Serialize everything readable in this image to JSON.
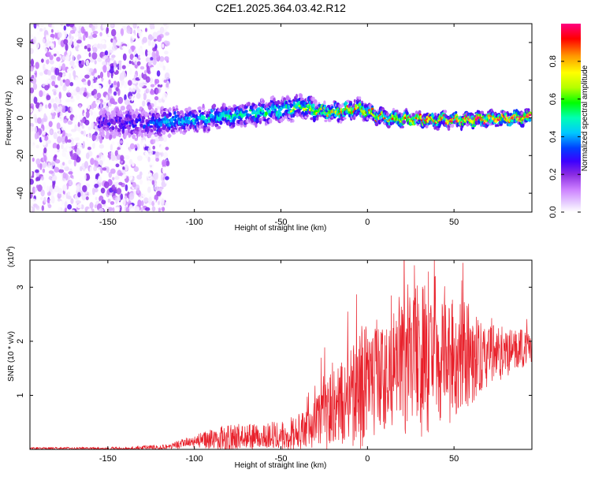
{
  "title": "C2E1.2025.364.03.42.R12",
  "colors": {
    "trace": "#e8202a",
    "axis": "#000000",
    "spectrogram_low": "#8a2be2",
    "spectrogram_high": "#ff0000"
  },
  "chart_data": [
    {
      "type": "heatmap",
      "name": "spectrogram",
      "title": "C2E1.2025.364.03.42.R12",
      "xlabel": "Height of straight line (km)",
      "ylabel": "Frequency (Hz)",
      "xlim": [
        -195,
        95
      ],
      "ylim": [
        -50,
        50
      ],
      "xticks": [
        -150,
        -100,
        -50,
        0,
        50
      ],
      "yticks": [
        -40,
        -20,
        0,
        20,
        40
      ],
      "colorbar": {
        "label": "Normalized spectral amplitude",
        "range": [
          0,
          1
        ],
        "ticks": [
          0.0,
          0.2,
          0.4,
          0.6,
          0.8
        ],
        "tick_labels": [
          "0.0",
          "0.2",
          "0.4",
          "0.6",
          "0.8"
        ],
        "colormap": [
          "#ffffff",
          "#e6ccff",
          "#cc80ff",
          "#8a2be2",
          "#3c00ff",
          "#0040ff",
          "#00c8ff",
          "#00ffb4",
          "#00ff00",
          "#b4ff00",
          "#ffff00",
          "#ff9600",
          "#ff0000",
          "#ff0080"
        ]
      },
      "ridge": {
        "x": [
          -150,
          -130,
          -115,
          -100,
          -80,
          -60,
          -45,
          -38,
          -30,
          -20,
          -5,
          0,
          10,
          30,
          60,
          90
        ],
        "y": [
          -3,
          -3,
          -2,
          -1,
          1,
          3,
          5,
          6,
          4,
          3,
          5,
          3,
          0,
          -1,
          -1,
          0
        ],
        "amplitude": [
          0.3,
          0.35,
          0.45,
          0.5,
          0.55,
          0.55,
          0.6,
          0.6,
          0.65,
          0.7,
          0.75,
          0.75,
          0.75,
          0.8,
          0.85,
          0.9
        ]
      },
      "noise_region": {
        "x_range": [
          -195,
          -115
        ],
        "y_range": [
          -50,
          50
        ]
      }
    },
    {
      "type": "line",
      "name": "snr",
      "xlabel": "Height of straight line (km)",
      "ylabel": "SNR (10 * v/v)",
      "y_multiplier": "(x10",
      "y_multiplier_exp": "4",
      "y_multiplier_close": ")",
      "xlim": [
        -195,
        95
      ],
      "ylim": [
        0,
        3.5
      ],
      "xticks": [
        -150,
        -100,
        -50,
        0,
        50
      ],
      "yticks": [
        1,
        2,
        3
      ],
      "envelope": {
        "x": [
          -195,
          -140,
          -115,
          -100,
          -80,
          -60,
          -45,
          -35,
          -30,
          -25,
          -20,
          -15,
          -10,
          -5,
          0,
          10,
          20,
          25,
          30,
          40,
          50,
          60,
          70,
          80,
          95
        ],
        "mean": [
          0.02,
          0.02,
          0.05,
          0.15,
          0.22,
          0.25,
          0.3,
          0.35,
          0.45,
          0.6,
          0.75,
          0.85,
          0.95,
          1.1,
          1.25,
          1.35,
          1.55,
          1.75,
          1.8,
          1.8,
          1.7,
          1.7,
          1.75,
          1.8,
          1.85
        ],
        "spread": [
          0.02,
          0.03,
          0.05,
          0.12,
          0.25,
          0.22,
          0.3,
          0.35,
          0.55,
          0.7,
          0.75,
          0.8,
          0.9,
          1.1,
          1.2,
          1.0,
          1.2,
          1.7,
          1.6,
          1.4,
          1.2,
          0.9,
          0.6,
          0.45,
          0.35
        ]
      }
    }
  ]
}
